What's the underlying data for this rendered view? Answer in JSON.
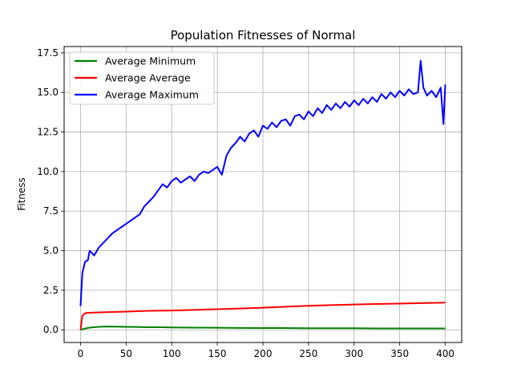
{
  "chart_data": {
    "type": "line",
    "title": "Population Fitnesses of Normal",
    "xlabel": "",
    "ylabel": "Fitness",
    "xlim": [
      -18,
      418
    ],
    "ylim": [
      -0.8,
      17.9
    ],
    "xticks": [
      0,
      50,
      100,
      150,
      200,
      250,
      300,
      350,
      400
    ],
    "yticks": [
      0.0,
      2.5,
      5.0,
      7.5,
      10.0,
      12.5,
      15.0,
      17.5
    ],
    "xtick_labels": [
      "0",
      "50",
      "100",
      "150",
      "200",
      "250",
      "300",
      "350",
      "400"
    ],
    "ytick_labels": [
      "0.0",
      "2.5",
      "5.0",
      "7.5",
      "10.0",
      "12.5",
      "15.0",
      "17.5"
    ],
    "grid": true,
    "legend_position": "top-left",
    "series": [
      {
        "name": "Average Minimum",
        "color": "#008000",
        "x": [
          0,
          5,
          10,
          15,
          20,
          25,
          30,
          40,
          50,
          60,
          70,
          80,
          90,
          100,
          125,
          150,
          175,
          200,
          225,
          250,
          275,
          300,
          325,
          350,
          375,
          400
        ],
        "values": [
          0.0,
          0.08,
          0.14,
          0.17,
          0.19,
          0.2,
          0.21,
          0.2,
          0.19,
          0.18,
          0.17,
          0.16,
          0.16,
          0.15,
          0.14,
          0.13,
          0.12,
          0.11,
          0.11,
          0.1,
          0.1,
          0.1,
          0.09,
          0.09,
          0.09,
          0.09
        ]
      },
      {
        "name": "Average Average",
        "color": "#ff0000",
        "x": [
          0,
          2,
          5,
          10,
          15,
          20,
          30,
          50,
          75,
          100,
          125,
          150,
          175,
          200,
          225,
          250,
          275,
          300,
          325,
          350,
          375,
          400
        ],
        "values": [
          0.0,
          0.9,
          1.05,
          1.08,
          1.09,
          1.1,
          1.12,
          1.15,
          1.2,
          1.22,
          1.26,
          1.3,
          1.35,
          1.4,
          1.46,
          1.52,
          1.56,
          1.6,
          1.63,
          1.66,
          1.69,
          1.72
        ]
      },
      {
        "name": "Average Maximum",
        "color": "#0000ff",
        "x": [
          0,
          2,
          5,
          8,
          10,
          15,
          20,
          25,
          30,
          35,
          40,
          45,
          50,
          55,
          60,
          65,
          70,
          75,
          80,
          85,
          90,
          95,
          100,
          105,
          110,
          115,
          120,
          125,
          130,
          135,
          140,
          145,
          150,
          155,
          160,
          165,
          170,
          175,
          180,
          185,
          190,
          195,
          200,
          205,
          210,
          215,
          220,
          225,
          230,
          235,
          240,
          245,
          250,
          255,
          260,
          265,
          270,
          275,
          280,
          285,
          290,
          295,
          300,
          305,
          310,
          315,
          320,
          325,
          330,
          335,
          340,
          345,
          350,
          355,
          360,
          365,
          370,
          373,
          376,
          380,
          385,
          390,
          395,
          398,
          400
        ],
        "values": [
          1.5,
          3.6,
          4.3,
          4.4,
          5.0,
          4.7,
          5.2,
          5.5,
          5.8,
          6.1,
          6.3,
          6.5,
          6.7,
          6.9,
          7.1,
          7.3,
          7.8,
          8.1,
          8.4,
          8.8,
          9.2,
          9.0,
          9.4,
          9.6,
          9.3,
          9.5,
          9.7,
          9.4,
          9.8,
          10.0,
          9.9,
          10.1,
          10.3,
          9.8,
          11.0,
          11.5,
          11.8,
          12.2,
          11.9,
          12.4,
          12.6,
          12.2,
          12.9,
          12.7,
          13.1,
          12.8,
          13.2,
          13.3,
          12.9,
          13.5,
          13.6,
          13.3,
          13.8,
          13.5,
          14.0,
          13.7,
          14.2,
          13.9,
          14.3,
          14.0,
          14.4,
          14.1,
          14.5,
          14.2,
          14.6,
          14.3,
          14.7,
          14.4,
          14.9,
          14.6,
          15.0,
          14.7,
          15.1,
          14.8,
          15.2,
          14.9,
          15.0,
          17.0,
          15.3,
          14.8,
          15.1,
          14.7,
          15.3,
          13.0,
          15.5
        ]
      }
    ]
  }
}
